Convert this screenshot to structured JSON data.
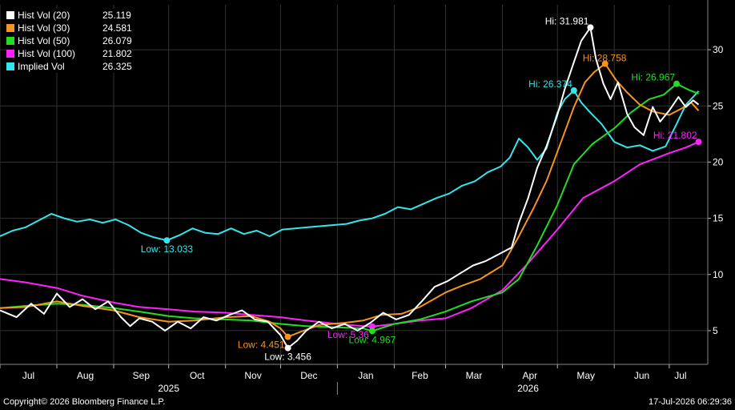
{
  "chart_data": {
    "type": "line",
    "ylim": [
      2,
      34
    ],
    "yticks": [
      5,
      10,
      15,
      20,
      25,
      30
    ],
    "x_domain": [
      "2025-07-01",
      "2026-07-22"
    ],
    "month_ticks": [
      {
        "label": "Jul",
        "date": "2025-07-01"
      },
      {
        "label": "Aug",
        "date": "2025-08-01"
      },
      {
        "label": "Sep",
        "date": "2025-09-01"
      },
      {
        "label": "Oct",
        "date": "2025-10-01"
      },
      {
        "label": "Nov",
        "date": "2025-11-01"
      },
      {
        "label": "Dec",
        "date": "2025-12-01"
      },
      {
        "label": "Jan",
        "date": "2026-01-01"
      },
      {
        "label": "Feb",
        "date": "2026-02-01"
      },
      {
        "label": "Mar",
        "date": "2026-03-01"
      },
      {
        "label": "Apr",
        "date": "2026-04-01"
      },
      {
        "label": "May",
        "date": "2026-05-01"
      },
      {
        "label": "Jun",
        "date": "2026-06-01"
      },
      {
        "label": "Jul",
        "date": "2026-07-01"
      }
    ],
    "year_labels": [
      {
        "label": "2025",
        "date": "2025-10-01"
      },
      {
        "label": "2026",
        "date": "2026-04-15"
      }
    ],
    "year_divider": "2026-01-01",
    "grid": true,
    "series": [
      {
        "name": "Hist Vol (20)",
        "last": "25.119",
        "color": "#ffffff",
        "points": [
          [
            "2025-07-01",
            6.8
          ],
          [
            "2025-07-10",
            6.2
          ],
          [
            "2025-07-18",
            7.4
          ],
          [
            "2025-07-25",
            6.5
          ],
          [
            "2025-08-01",
            8.3
          ],
          [
            "2025-08-08",
            7.1
          ],
          [
            "2025-08-15",
            7.8
          ],
          [
            "2025-08-22",
            6.9
          ],
          [
            "2025-08-29",
            7.6
          ],
          [
            "2025-09-05",
            6.2
          ],
          [
            "2025-09-10",
            5.4
          ],
          [
            "2025-09-15",
            6.1
          ],
          [
            "2025-09-22",
            5.8
          ],
          [
            "2025-09-29",
            5.0
          ],
          [
            "2025-10-06",
            5.8
          ],
          [
            "2025-10-13",
            5.2
          ],
          [
            "2025-10-20",
            6.2
          ],
          [
            "2025-10-27",
            5.9
          ],
          [
            "2025-11-03",
            6.4
          ],
          [
            "2025-11-10",
            6.8
          ],
          [
            "2025-11-17",
            6.0
          ],
          [
            "2025-11-24",
            5.8
          ],
          [
            "2025-12-01",
            4.6
          ],
          [
            "2025-12-05",
            3.456
          ],
          [
            "2025-12-10",
            4.1
          ],
          [
            "2025-12-15",
            5.0
          ],
          [
            "2025-12-22",
            5.8
          ],
          [
            "2025-12-29",
            5.2
          ],
          [
            "2026-01-05",
            5.6
          ],
          [
            "2026-01-12",
            5.0
          ],
          [
            "2026-01-19",
            5.7
          ],
          [
            "2026-01-26",
            6.6
          ],
          [
            "2026-02-02",
            6.0
          ],
          [
            "2026-02-09",
            6.4
          ],
          [
            "2026-02-16",
            7.6
          ],
          [
            "2026-02-23",
            8.9
          ],
          [
            "2026-03-02",
            9.4
          ],
          [
            "2026-03-09",
            10.1
          ],
          [
            "2026-03-16",
            10.8
          ],
          [
            "2026-03-23",
            11.2
          ],
          [
            "2026-03-30",
            11.8
          ],
          [
            "2026-04-06",
            12.4
          ],
          [
            "2026-04-10",
            14.6
          ],
          [
            "2026-04-15",
            16.8
          ],
          [
            "2026-04-20",
            19.5
          ],
          [
            "2026-04-25",
            21.4
          ],
          [
            "2026-05-01",
            24.2
          ],
          [
            "2026-05-05",
            26.5
          ],
          [
            "2026-05-10",
            28.9
          ],
          [
            "2026-05-14",
            30.8
          ],
          [
            "2026-05-19",
            31.981
          ],
          [
            "2026-05-22",
            29.2
          ],
          [
            "2026-05-26",
            27.0
          ],
          [
            "2026-05-30",
            25.6
          ],
          [
            "2026-06-03",
            27.1
          ],
          [
            "2026-06-08",
            24.3
          ],
          [
            "2026-06-12",
            23.1
          ],
          [
            "2026-06-17",
            22.4
          ],
          [
            "2026-06-22",
            24.9
          ],
          [
            "2026-06-26",
            23.6
          ],
          [
            "2026-07-01",
            24.6
          ],
          [
            "2026-07-06",
            25.8
          ],
          [
            "2026-07-10",
            24.9
          ],
          [
            "2026-07-14",
            25.5
          ],
          [
            "2026-07-17",
            25.119
          ]
        ]
      },
      {
        "name": "Hist Vol (30)",
        "last": "24.581",
        "color": "#f7931e",
        "points": [
          [
            "2025-07-01",
            7.0
          ],
          [
            "2025-07-15",
            7.1
          ],
          [
            "2025-08-01",
            7.6
          ],
          [
            "2025-08-15",
            7.2
          ],
          [
            "2025-09-01",
            6.8
          ],
          [
            "2025-09-15",
            6.2
          ],
          [
            "2025-10-01",
            5.8
          ],
          [
            "2025-10-15",
            5.9
          ],
          [
            "2025-11-01",
            6.2
          ],
          [
            "2025-11-15",
            6.3
          ],
          [
            "2025-11-25",
            5.8
          ],
          [
            "2025-12-01",
            5.2
          ],
          [
            "2025-12-05",
            4.451
          ],
          [
            "2025-12-12",
            4.9
          ],
          [
            "2025-12-22",
            5.5
          ],
          [
            "2026-01-05",
            5.7
          ],
          [
            "2026-01-15",
            5.9
          ],
          [
            "2026-01-25",
            6.4
          ],
          [
            "2026-02-05",
            6.5
          ],
          [
            "2026-02-15",
            7.1
          ],
          [
            "2026-03-01",
            8.4
          ],
          [
            "2026-03-10",
            9.0
          ],
          [
            "2026-03-20",
            9.6
          ],
          [
            "2026-04-01",
            10.8
          ],
          [
            "2026-04-10",
            13.4
          ],
          [
            "2026-04-18",
            15.9
          ],
          [
            "2026-04-25",
            18.3
          ],
          [
            "2026-05-03",
            21.8
          ],
          [
            "2026-05-10",
            24.9
          ],
          [
            "2026-05-16",
            27.1
          ],
          [
            "2026-05-21",
            28.0
          ],
          [
            "2026-05-27",
            28.758
          ],
          [
            "2026-06-02",
            27.3
          ],
          [
            "2026-06-08",
            26.2
          ],
          [
            "2026-06-15",
            25.1
          ],
          [
            "2026-06-22",
            24.5
          ],
          [
            "2026-07-01",
            24.2
          ],
          [
            "2026-07-08",
            24.8
          ],
          [
            "2026-07-13",
            25.3
          ],
          [
            "2026-07-17",
            24.581
          ]
        ]
      },
      {
        "name": "Hist Vol (50)",
        "last": "26.079",
        "color": "#22dd22",
        "points": [
          [
            "2025-07-01",
            7.0
          ],
          [
            "2025-07-15",
            7.2
          ],
          [
            "2025-08-01",
            7.4
          ],
          [
            "2025-08-15",
            7.3
          ],
          [
            "2025-09-01",
            7.0
          ],
          [
            "2025-09-15",
            6.7
          ],
          [
            "2025-10-01",
            6.3
          ],
          [
            "2025-10-15",
            6.1
          ],
          [
            "2025-11-01",
            6.0
          ],
          [
            "2025-11-15",
            5.9
          ],
          [
            "2025-12-01",
            5.6
          ],
          [
            "2025-12-15",
            5.4
          ],
          [
            "2026-01-01",
            5.3
          ],
          [
            "2026-01-15",
            5.2
          ],
          [
            "2026-01-20",
            4.967
          ],
          [
            "2026-02-01",
            5.6
          ],
          [
            "2026-02-15",
            6.0
          ],
          [
            "2026-03-01",
            6.7
          ],
          [
            "2026-03-15",
            7.6
          ],
          [
            "2026-04-01",
            8.4
          ],
          [
            "2026-04-10",
            9.6
          ],
          [
            "2026-04-20",
            12.6
          ],
          [
            "2026-05-01",
            16.2
          ],
          [
            "2026-05-10",
            19.8
          ],
          [
            "2026-05-20",
            21.6
          ],
          [
            "2026-06-01",
            23.0
          ],
          [
            "2026-06-10",
            24.4
          ],
          [
            "2026-06-20",
            25.6
          ],
          [
            "2026-06-28",
            26.0
          ],
          [
            "2026-07-05",
            26.967
          ],
          [
            "2026-07-12",
            26.4
          ],
          [
            "2026-07-17",
            26.079
          ]
        ]
      },
      {
        "name": "Hist Vol (100)",
        "last": "21.802",
        "color": "#ff22ff",
        "points": [
          [
            "2025-07-01",
            9.6
          ],
          [
            "2025-07-15",
            9.3
          ],
          [
            "2025-08-01",
            8.8
          ],
          [
            "2025-08-15",
            8.1
          ],
          [
            "2025-09-01",
            7.5
          ],
          [
            "2025-09-15",
            7.1
          ],
          [
            "2025-10-01",
            6.9
          ],
          [
            "2025-10-15",
            6.7
          ],
          [
            "2025-11-01",
            6.6
          ],
          [
            "2025-11-15",
            6.4
          ],
          [
            "2025-12-01",
            6.2
          ],
          [
            "2025-12-15",
            5.9
          ],
          [
            "2026-01-01",
            5.6
          ],
          [
            "2026-01-15",
            5.4
          ],
          [
            "2026-01-20",
            5.36
          ],
          [
            "2026-02-01",
            5.6
          ],
          [
            "2026-02-15",
            5.9
          ],
          [
            "2026-03-01",
            6.1
          ],
          [
            "2026-03-15",
            7.0
          ],
          [
            "2026-04-01",
            8.6
          ],
          [
            "2026-04-15",
            11.0
          ],
          [
            "2026-05-01",
            14.0
          ],
          [
            "2026-05-15",
            16.8
          ],
          [
            "2026-06-01",
            18.3
          ],
          [
            "2026-06-15",
            19.8
          ],
          [
            "2026-07-01",
            20.8
          ],
          [
            "2026-07-10",
            21.3
          ],
          [
            "2026-07-17",
            21.802
          ]
        ]
      },
      {
        "name": "Implied Vol",
        "last": "26.325",
        "color": "#33e6ec",
        "points": [
          [
            "2025-07-01",
            13.4
          ],
          [
            "2025-07-08",
            13.9
          ],
          [
            "2025-07-15",
            14.2
          ],
          [
            "2025-07-22",
            14.8
          ],
          [
            "2025-07-29",
            15.4
          ],
          [
            "2025-08-05",
            15.0
          ],
          [
            "2025-08-12",
            14.7
          ],
          [
            "2025-08-19",
            14.9
          ],
          [
            "2025-08-26",
            14.6
          ],
          [
            "2025-09-02",
            14.9
          ],
          [
            "2025-09-09",
            14.4
          ],
          [
            "2025-09-16",
            13.7
          ],
          [
            "2025-09-23",
            13.3
          ],
          [
            "2025-09-30",
            13.033
          ],
          [
            "2025-10-07",
            13.5
          ],
          [
            "2025-10-14",
            14.1
          ],
          [
            "2025-10-21",
            13.7
          ],
          [
            "2025-10-28",
            13.6
          ],
          [
            "2025-11-04",
            14.1
          ],
          [
            "2025-11-11",
            13.6
          ],
          [
            "2025-11-18",
            13.9
          ],
          [
            "2025-11-25",
            13.4
          ],
          [
            "2025-12-02",
            14.0
          ],
          [
            "2025-12-09",
            14.1
          ],
          [
            "2025-12-16",
            14.2
          ],
          [
            "2025-12-23",
            14.3
          ],
          [
            "2025-12-30",
            14.4
          ],
          [
            "2026-01-06",
            14.5
          ],
          [
            "2026-01-13",
            14.8
          ],
          [
            "2026-01-20",
            15.0
          ],
          [
            "2026-01-27",
            15.4
          ],
          [
            "2026-02-03",
            16.0
          ],
          [
            "2026-02-10",
            15.8
          ],
          [
            "2026-02-17",
            16.3
          ],
          [
            "2026-02-24",
            16.8
          ],
          [
            "2026-03-03",
            17.2
          ],
          [
            "2026-03-10",
            17.9
          ],
          [
            "2026-03-17",
            18.3
          ],
          [
            "2026-03-24",
            19.1
          ],
          [
            "2026-03-31",
            19.6
          ],
          [
            "2026-04-05",
            20.4
          ],
          [
            "2026-04-10",
            22.1
          ],
          [
            "2026-04-15",
            21.3
          ],
          [
            "2026-04-20",
            20.2
          ],
          [
            "2026-04-25",
            21.2
          ],
          [
            "2026-05-01",
            24.4
          ],
          [
            "2026-05-05",
            25.6
          ],
          [
            "2026-05-10",
            26.374
          ],
          [
            "2026-05-14",
            25.3
          ],
          [
            "2026-05-19",
            24.4
          ],
          [
            "2026-05-25",
            23.4
          ],
          [
            "2026-06-01",
            21.8
          ],
          [
            "2026-06-08",
            21.3
          ],
          [
            "2026-06-15",
            21.5
          ],
          [
            "2026-06-22",
            21.0
          ],
          [
            "2026-06-29",
            21.4
          ],
          [
            "2026-07-05",
            23.4
          ],
          [
            "2026-07-10",
            25.1
          ],
          [
            "2026-07-14",
            25.8
          ],
          [
            "2026-07-17",
            26.325
          ]
        ]
      }
    ],
    "annotations": [
      {
        "series": 0,
        "text": "Hi: 31.981",
        "date": "2026-05-19",
        "value": 31.981,
        "placement": "left-above"
      },
      {
        "series": 1,
        "text": "Hi: 28.758",
        "date": "2026-05-27",
        "value": 28.758,
        "placement": "right-above"
      },
      {
        "series": 4,
        "text": "Hi: 26.374",
        "date": "2026-05-10",
        "value": 26.374,
        "placement": "left-above"
      },
      {
        "series": 2,
        "text": "Hi: 26.967",
        "date": "2026-07-05",
        "value": 26.967,
        "placement": "left-above"
      },
      {
        "series": 3,
        "text": "Hi: 21.802",
        "date": "2026-07-17",
        "value": 21.802,
        "placement": "left-above"
      },
      {
        "series": 4,
        "text": "Low: 13.033",
        "date": "2025-09-30",
        "value": 13.033,
        "placement": "below"
      },
      {
        "series": 1,
        "text": "Low: 4.451",
        "date": "2025-12-05",
        "value": 4.451,
        "placement": "left-below"
      },
      {
        "series": 0,
        "text": "Low: 3.456",
        "date": "2025-12-05",
        "value": 3.456,
        "placement": "below"
      },
      {
        "series": 3,
        "text": "Low: 5.36",
        "date": "2026-01-20",
        "value": 5.36,
        "placement": "left-below"
      },
      {
        "series": 2,
        "text": "Low: 4.967",
        "date": "2026-01-20",
        "value": 4.967,
        "placement": "below"
      }
    ]
  },
  "footer": {
    "copyright": "Copyright© 2026 Bloomberg Finance L.P.",
    "timestamp": "17-Jul-2026 06:29:36"
  },
  "colors": {
    "background": "#000000",
    "grid": "#333333",
    "text": "#ffffff"
  }
}
